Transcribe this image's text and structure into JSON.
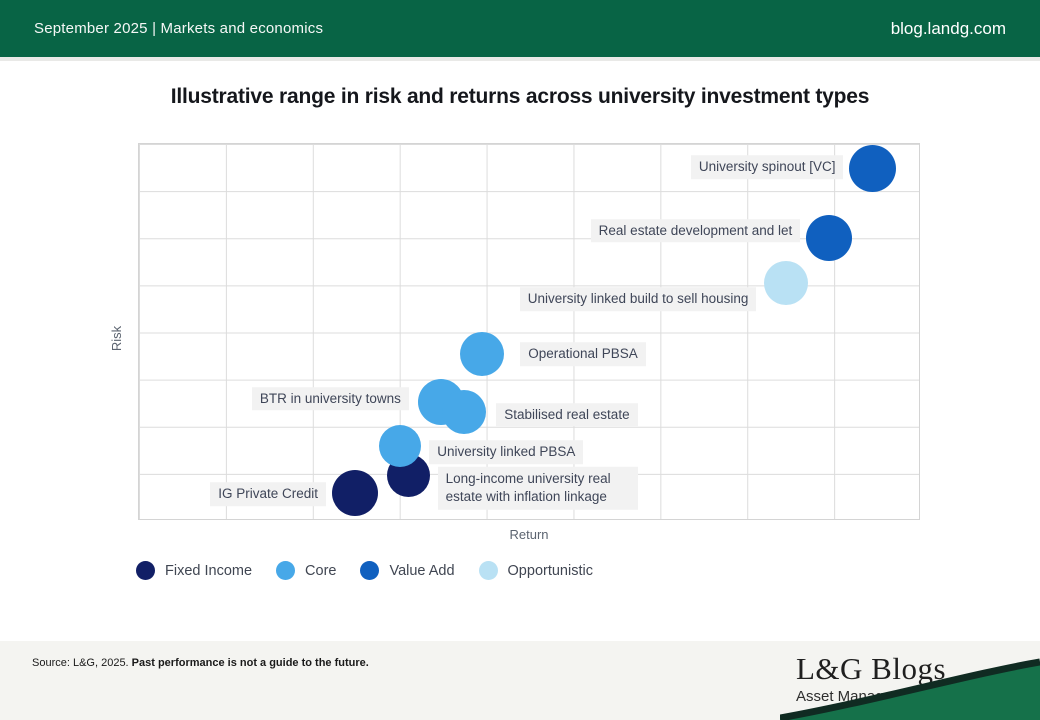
{
  "header": {
    "left_text": "September 2025 |  Markets and economics",
    "right_text": "blog.landg.com",
    "bar_color": "#086445"
  },
  "title": "Illustrative range in risk and returns across university investment types",
  "chart_data": {
    "type": "scatter",
    "title": "Illustrative range in risk and returns across university investment types",
    "xlabel": "Return",
    "ylabel": "Risk",
    "x_range": [
      0,
      100
    ],
    "y_range": [
      0,
      100
    ],
    "grid": true,
    "legend_position": "bottom",
    "axes_numeric_labels": false,
    "categories": [
      {
        "key": "fixed_income",
        "label": "Fixed Income",
        "color": "#111F66"
      },
      {
        "key": "core",
        "label": "Core",
        "color": "#47A8E8"
      },
      {
        "key": "value_add",
        "label": "Value Add",
        "color": "#1060BF"
      },
      {
        "key": "opportunistic",
        "label": "Opportunistic",
        "color": "#B9E1F4"
      }
    ],
    "points": [
      {
        "label": "IG Private Credit",
        "category": "fixed_income",
        "return": 27.7,
        "risk": 6.9,
        "size": 46,
        "label_side": "left",
        "label_dy": 1,
        "label_gap": 6
      },
      {
        "label": "Long-income university real estate with inflation linkage",
        "category": "fixed_income",
        "return": 34.5,
        "risk": 11.7,
        "size": 43,
        "label_side": "right",
        "label_dy": 13,
        "label_gap": 8,
        "label_width": 200
      },
      {
        "label": "University linked PBSA",
        "category": "core",
        "return": 33.5,
        "risk": 19.4,
        "size": 42,
        "label_side": "right",
        "label_dy": 6,
        "label_gap": 8
      },
      {
        "label": "BTR in university towns",
        "category": "core",
        "return": 38.7,
        "risk": 31.3,
        "size": 46,
        "label_side": "left",
        "label_dy": -3,
        "label_gap": 9
      },
      {
        "label": "Stabilised real estate",
        "category": "core",
        "return": 41.7,
        "risk": 28.6,
        "size": 44,
        "label_side": "right",
        "label_dy": 3,
        "label_gap": 10
      },
      {
        "label": "Operational PBSA",
        "category": "core",
        "return": 44.0,
        "risk": 44.0,
        "size": 44,
        "label_side": "right",
        "label_dy": 0,
        "label_gap": 16
      },
      {
        "label": "University linked build to sell housing",
        "category": "opportunistic",
        "return": 83.0,
        "risk": 62.9,
        "size": 44,
        "label_side": "left",
        "label_dy": 16,
        "label_gap": 8
      },
      {
        "label": "Real estate development and let",
        "category": "value_add",
        "return": 88.5,
        "risk": 75.0,
        "size": 46,
        "label_side": "left",
        "label_dy": -7,
        "label_gap": 6
      },
      {
        "label": "University spinout [VC]",
        "category": "value_add",
        "return": 94.1,
        "risk": 93.6,
        "size": 47,
        "label_side": "left",
        "label_dy": -1,
        "label_gap": 6
      }
    ]
  },
  "footer": {
    "source_prefix": "Source: L&G, 2025. ",
    "source_bold": "Past performance is not a guide to the future."
  },
  "logo": {
    "title": "L&G Blogs",
    "subtitle": "Asset Management",
    "swoosh_dark": "#102B22",
    "swoosh_green": "#15714A"
  }
}
